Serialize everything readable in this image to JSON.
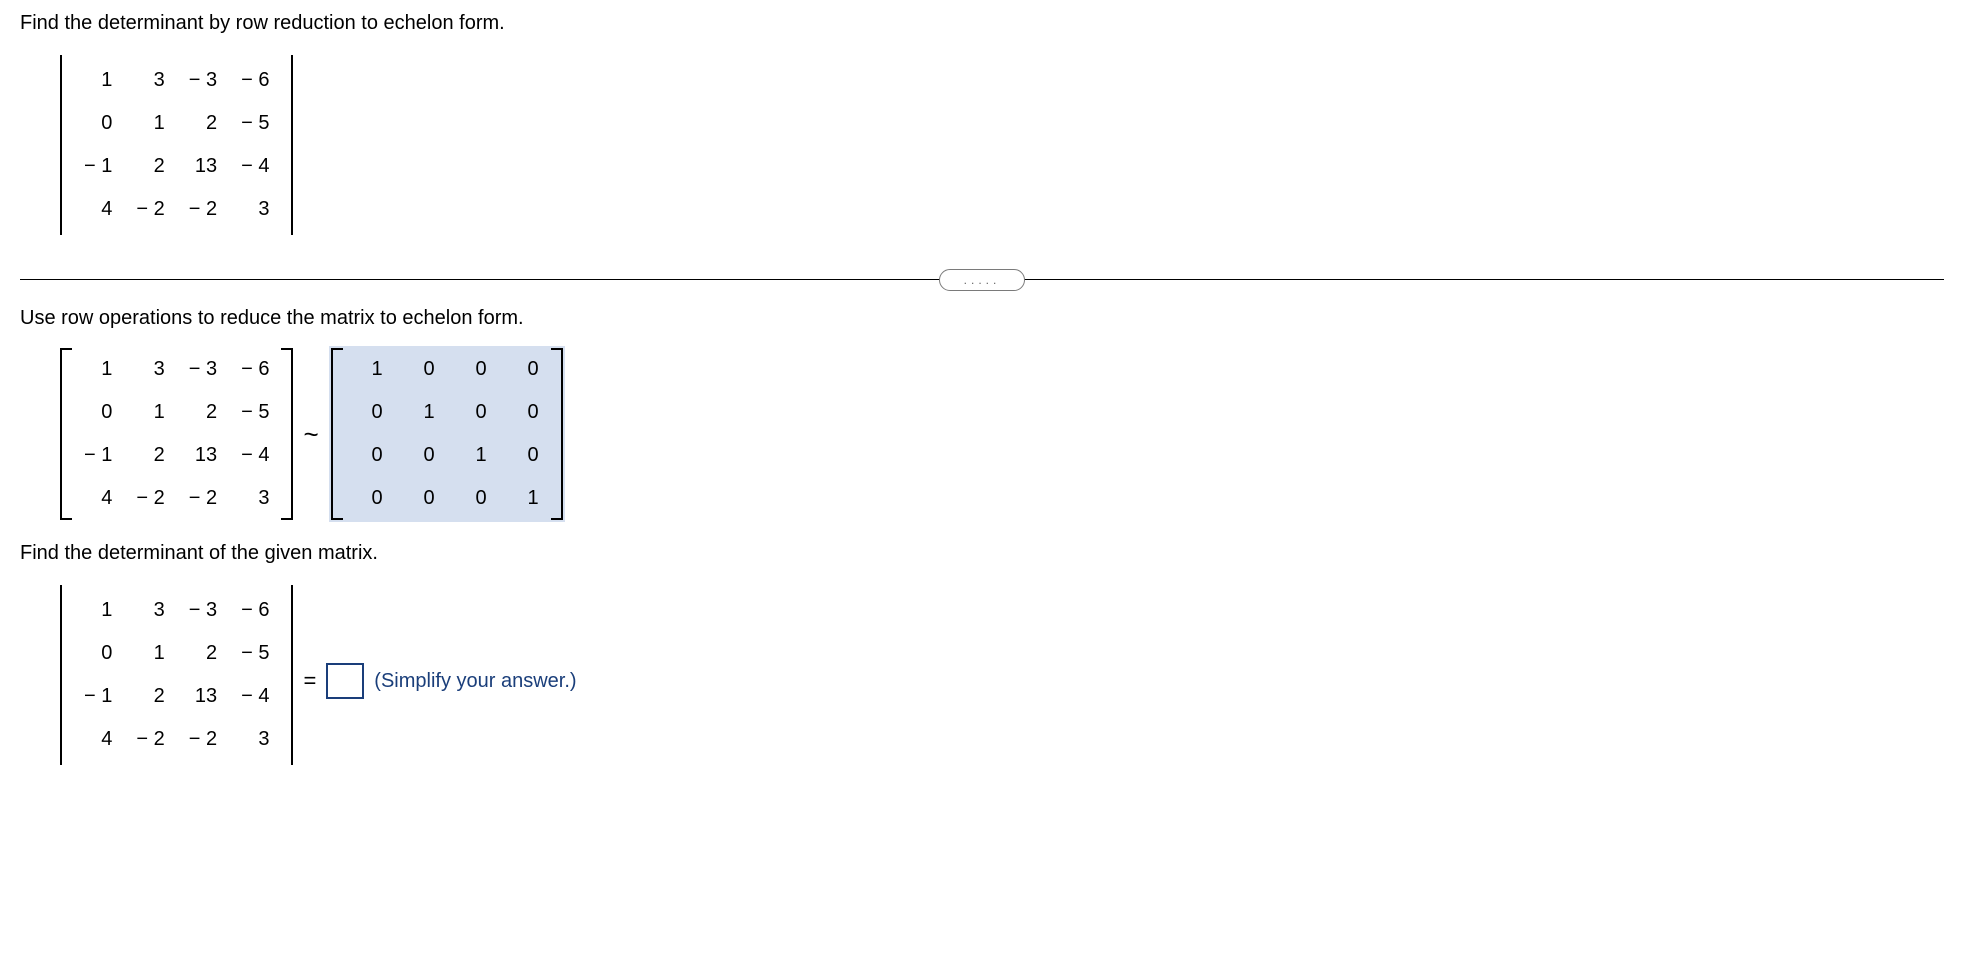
{
  "prompt_text": "Find the determinant by row reduction to echelon form.",
  "instruction_text": "Use row operations to reduce the matrix to echelon form.",
  "final_prompt": "Find the determinant of the given matrix.",
  "simplify_hint": "(Simplify your answer.)",
  "equals_sign": "=",
  "tilde_sign": "~",
  "pill_dots": ".....",
  "matrix": {
    "rows": [
      [
        "1",
        "3",
        "− 3",
        "− 6"
      ],
      [
        "0",
        "1",
        "2",
        "− 5"
      ],
      [
        "− 1",
        "2",
        "13",
        "− 4"
      ],
      [
        "4",
        "− 2",
        "− 2",
        "3"
      ]
    ],
    "col_count": 4,
    "cell_fontsize": 20,
    "cell_padding": "10px 12px"
  },
  "identity_matrix": {
    "rows": [
      [
        "1",
        "0",
        "0",
        "0"
      ],
      [
        "0",
        "1",
        "0",
        "0"
      ],
      [
        "0",
        "0",
        "1",
        "0"
      ],
      [
        "0",
        "0",
        "0",
        "1"
      ]
    ],
    "highlight_bg": "#d5dfef"
  },
  "answer_value": "",
  "styling": {
    "body_bg": "#ffffff",
    "text_color": "#000000",
    "nav_color": "#1a3e7a",
    "border_color": "#000000",
    "input_border": "#1a3e7a",
    "pill_border": "#7a7a7a",
    "pill_text": "#666666",
    "font_family": "Arial, Helvetica, sans-serif",
    "base_fontsize": 20
  }
}
